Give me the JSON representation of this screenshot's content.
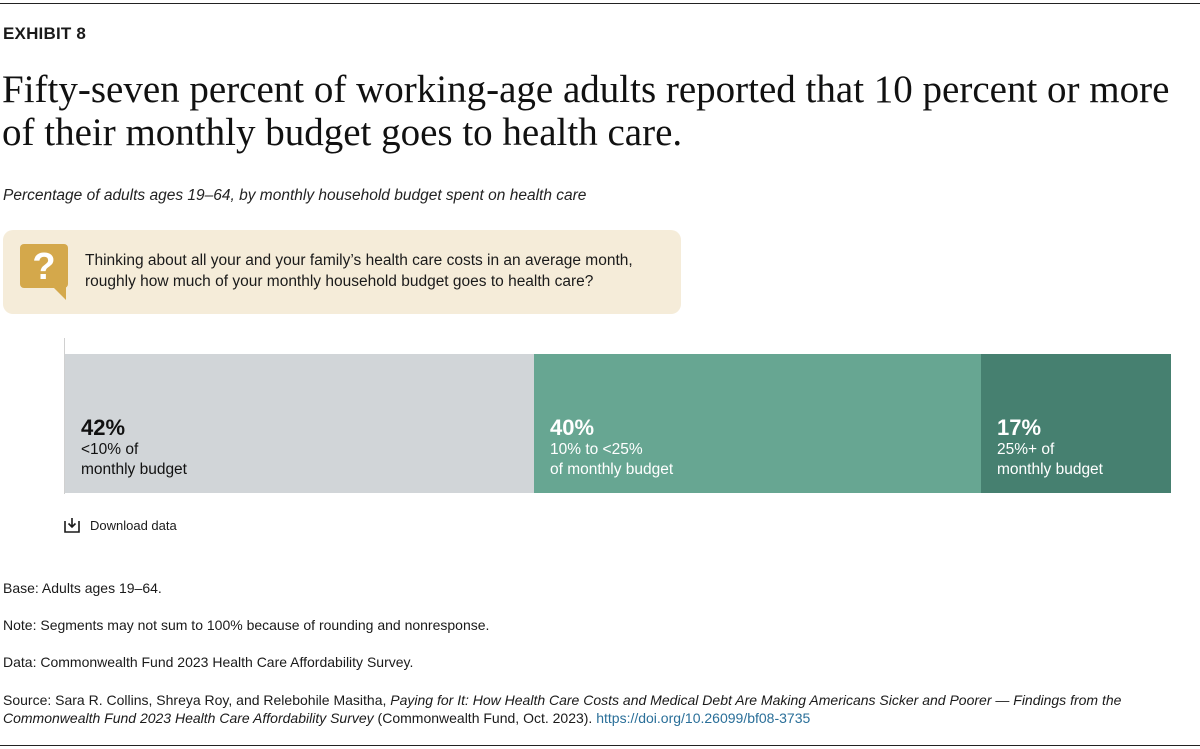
{
  "exhibit_label": "EXHIBIT 8",
  "headline": "Fifty-seven percent of working-age adults reported that 10 percent or more of their monthly budget goes to health care.",
  "subtitle": "Percentage of adults ages 19–64, by monthly household budget spent on health care",
  "question": {
    "icon": "question-mark-speech-bubble-icon",
    "text": "Thinking about all your and your family’s health care costs in an average month, roughly how much of your monthly household budget goes to health care?"
  },
  "chart_data": {
    "type": "bar",
    "orientation": "horizontal-stacked",
    "categories": [
      "<10% of monthly budget",
      "10% to <25% of monthly budget",
      "25%+ of monthly budget"
    ],
    "values": [
      42,
      40,
      17
    ],
    "series": [
      {
        "value_label": "42%",
        "desc": "<10% of\nmonthly budget",
        "value": 42,
        "color": "#d1d5d8",
        "text_color": "#111111"
      },
      {
        "value_label": "40%",
        "desc": "10% to <25%\nof monthly budget",
        "value": 40,
        "color": "#67a692",
        "text_color": "#ffffff"
      },
      {
        "value_label": "17%",
        "desc": "25%+ of\nmonthly budget",
        "value": 17,
        "color": "#468070",
        "text_color": "#ffffff"
      }
    ]
  },
  "download_label": "Download data",
  "notes": {
    "base": "Base: Adults ages 19–64.",
    "note": "Note: Segments may not sum to 100% because of rounding and nonresponse.",
    "data": "Data: Commonwealth Fund 2023 Health Care Affordability Survey.",
    "source_prefix": "Source: Sara R. Collins, Shreya Roy, and Relebohile Masitha, ",
    "source_title": "Paying for It: How Health Care Costs and Medical Debt Are Making Americans Sicker and Poorer — Findings from the Commonwealth Fund 2023 Health Care Affordability Survey",
    "source_suffix": " (Commonwealth Fund, Oct. 2023). ",
    "source_link": "https://doi.org/10.26099/bf08-3735"
  }
}
